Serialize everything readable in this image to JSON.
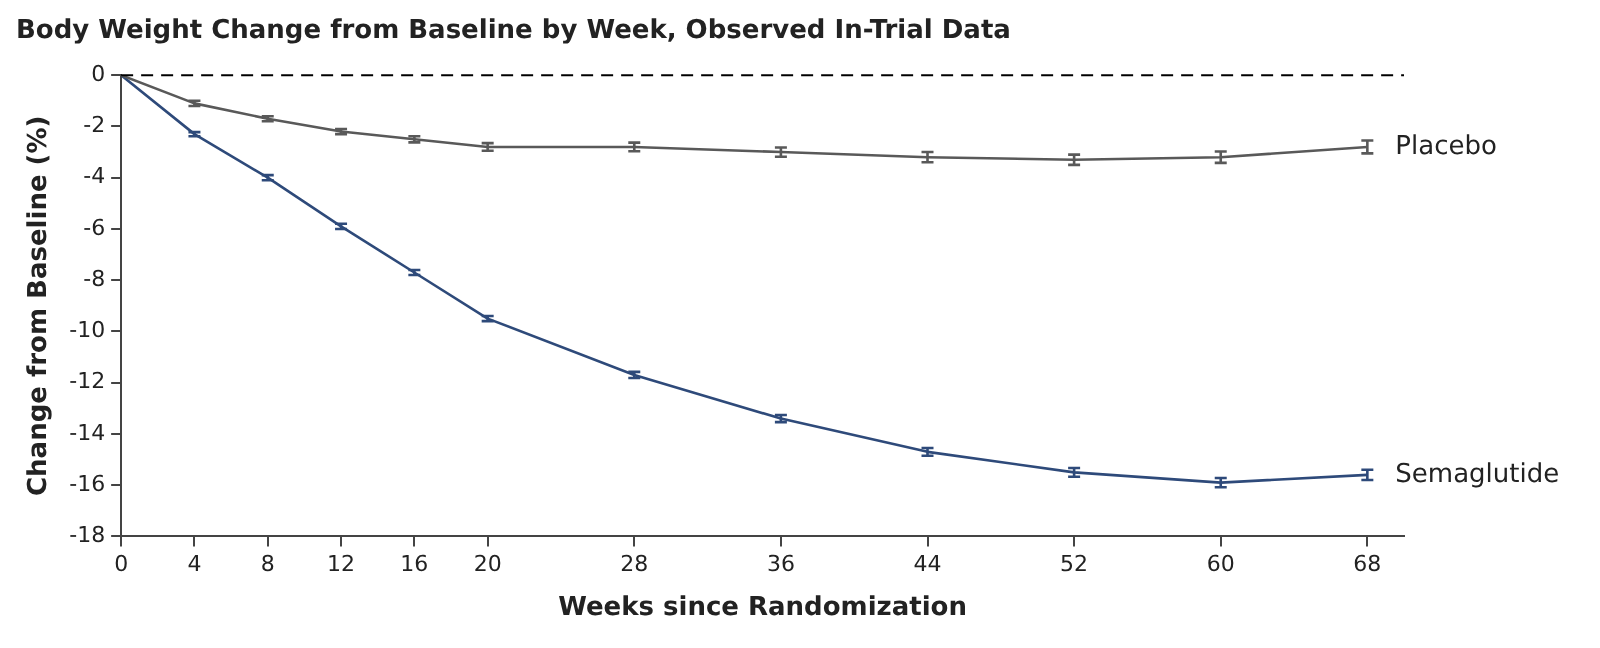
{
  "chart_data": {
    "type": "line",
    "title": "Body Weight Change from Baseline by Week, Observed In-Trial Data",
    "xlabel": "Weeks since Randomization",
    "ylabel": "Change from Baseline (%)",
    "x": [
      0,
      4,
      8,
      12,
      16,
      20,
      28,
      36,
      44,
      52,
      60,
      68
    ],
    "series": [
      {
        "name": "Placebo",
        "color": "#595959",
        "values": [
          0,
          -1.1,
          -1.7,
          -2.2,
          -2.5,
          -2.8,
          -2.8,
          -3.0,
          -3.2,
          -3.3,
          -3.2,
          -2.8
        ],
        "errors": [
          null,
          0.1,
          0.1,
          0.1,
          0.12,
          0.15,
          0.17,
          0.18,
          0.2,
          0.2,
          0.22,
          0.25
        ]
      },
      {
        "name": "Semaglutide",
        "color": "#2e4a7a",
        "values": [
          0,
          -2.3,
          -4.0,
          -5.9,
          -7.7,
          -9.5,
          -11.7,
          -13.4,
          -14.7,
          -15.5,
          -15.9,
          -15.6
        ],
        "errors": [
          null,
          0.08,
          0.1,
          0.1,
          0.1,
          0.1,
          0.12,
          0.14,
          0.15,
          0.17,
          0.18,
          0.2
        ]
      }
    ],
    "xlim": [
      0,
      70
    ],
    "xticks": [
      0,
      4,
      8,
      12,
      16,
      20,
      28,
      36,
      44,
      52,
      60,
      68
    ],
    "ylim": [
      -18,
      0
    ],
    "yticks": [
      0,
      -2,
      -4,
      -6,
      -8,
      -10,
      -12,
      -14,
      -16,
      -18
    ],
    "ref_lines": [
      {
        "axis": "y",
        "value": 0,
        "line_style": "dashed",
        "color": "#000000"
      }
    ],
    "grid": false,
    "legend": false,
    "line_style": "solid"
  }
}
